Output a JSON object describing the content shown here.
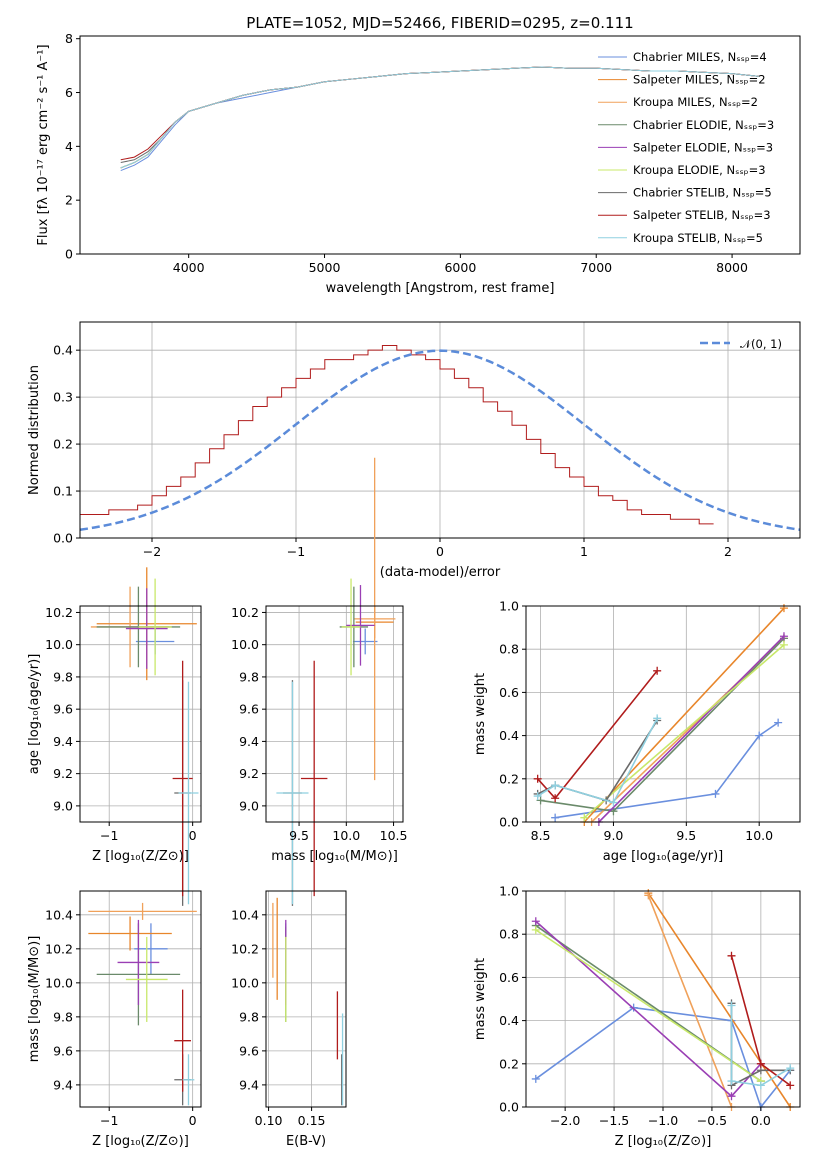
{
  "title": "PLATE=1052, MJD=52466, FIBERID=0295, z=0.111",
  "series_colors": [
    "#6a8fde",
    "#e8862b",
    "#f0a15a",
    "#6a8a6a",
    "#9a3fb4",
    "#c8e86a",
    "#6a6a6a",
    "#b01c1c",
    "#8fd0e0"
  ],
  "chart_data": [
    {
      "type": "line",
      "xlabel": "wavelength [Angstrom, rest frame]",
      "ylabel": "Flux [fλ 10⁻¹⁷ erg cm⁻² s⁻¹ A⁻¹]",
      "xlim": [
        3200,
        8500
      ],
      "ylim": [
        0,
        8.1
      ],
      "xticks": [
        "4000",
        "5000",
        "6000",
        "7000",
        "8000"
      ],
      "yticks": [
        "0",
        "2",
        "4",
        "6",
        "8"
      ],
      "grid": false,
      "legend_position": "right",
      "x": [
        3500,
        3600,
        3700,
        3800,
        3900,
        4000,
        4200,
        4400,
        4600,
        4800,
        5000,
        5200,
        5400,
        5600,
        5800,
        6000,
        6200,
        6400,
        6600,
        6800,
        7000,
        7200,
        7400,
        7600,
        7800,
        8000,
        8200
      ],
      "series": [
        {
          "name": "Chabrier MILES, N_SSP=4",
          "values": [
            3.1,
            3.3,
            3.6,
            4.2,
            4.8,
            5.3,
            5.6,
            5.8,
            6.0,
            6.2,
            6.4,
            6.5,
            6.6,
            6.7,
            6.75,
            6.8,
            6.85,
            6.9,
            6.95,
            6.9,
            6.9,
            6.85,
            6.8,
            6.8,
            6.75,
            6.7,
            6.6
          ]
        },
        {
          "name": "Salpeter MILES, N_SSP=2",
          "values": [
            3.2,
            3.4,
            3.7,
            4.3,
            4.9,
            5.3,
            5.6,
            5.9,
            6.1,
            6.2,
            6.4,
            6.5,
            6.6,
            6.7,
            6.75,
            6.8,
            6.85,
            6.9,
            6.95,
            6.9,
            6.9,
            6.85,
            6.8,
            6.8,
            6.75,
            6.7,
            6.6
          ]
        },
        {
          "name": "Kroupa MILES, N_SSP=2",
          "values": [
            3.2,
            3.4,
            3.7,
            4.3,
            4.9,
            5.3,
            5.6,
            5.9,
            6.1,
            6.2,
            6.4,
            6.5,
            6.6,
            6.7,
            6.75,
            6.8,
            6.85,
            6.9,
            6.95,
            6.9,
            6.9,
            6.85,
            6.8,
            6.8,
            6.75,
            6.7,
            6.6
          ]
        },
        {
          "name": "Chabrier ELODIE, N_SSP=3",
          "values": [
            3.2,
            3.4,
            3.7,
            4.3,
            4.9,
            5.3,
            5.6,
            5.9,
            6.1,
            6.2,
            6.4,
            6.5,
            6.6,
            6.7,
            6.75,
            6.8,
            6.85,
            6.9,
            6.95,
            6.9,
            6.9,
            6.85,
            6.8,
            6.8,
            6.75,
            6.7,
            6.6
          ]
        },
        {
          "name": "Salpeter ELODIE, N_SSP=3",
          "values": [
            3.2,
            3.4,
            3.7,
            4.3,
            4.9,
            5.3,
            5.6,
            5.9,
            6.1,
            6.2,
            6.4,
            6.5,
            6.6,
            6.7,
            6.75,
            6.8,
            6.85,
            6.9,
            6.95,
            6.9,
            6.9,
            6.85,
            6.8,
            6.8,
            6.75,
            6.7,
            6.6
          ]
        },
        {
          "name": "Kroupa ELODIE, N_SSP=3",
          "values": [
            3.2,
            3.4,
            3.7,
            4.3,
            4.9,
            5.3,
            5.6,
            5.9,
            6.1,
            6.2,
            6.4,
            6.5,
            6.6,
            6.7,
            6.75,
            6.8,
            6.85,
            6.9,
            6.95,
            6.9,
            6.9,
            6.85,
            6.8,
            6.8,
            6.75,
            6.7,
            6.6
          ]
        },
        {
          "name": "Chabrier STELIB, N_SSP=5",
          "values": [
            3.4,
            3.5,
            3.8,
            4.3,
            4.9,
            5.3,
            5.6,
            5.9,
            6.1,
            6.2,
            6.4,
            6.5,
            6.6,
            6.7,
            6.75,
            6.8,
            6.85,
            6.9,
            6.95,
            6.9,
            6.9,
            6.85,
            6.8,
            6.8,
            6.75,
            6.7,
            6.6
          ]
        },
        {
          "name": "Salpeter STELIB, N_SSP=3",
          "values": [
            3.5,
            3.6,
            3.9,
            4.4,
            4.9,
            5.3,
            5.6,
            5.9,
            6.1,
            6.2,
            6.4,
            6.5,
            6.6,
            6.7,
            6.75,
            6.8,
            6.85,
            6.9,
            6.95,
            6.9,
            6.9,
            6.85,
            6.8,
            6.8,
            6.75,
            6.7,
            6.6
          ]
        },
        {
          "name": "Kroupa STELIB, N_SSP=5",
          "values": [
            3.2,
            3.4,
            3.7,
            4.3,
            4.9,
            5.3,
            5.6,
            5.9,
            6.1,
            6.2,
            6.4,
            6.5,
            6.6,
            6.7,
            6.75,
            6.8,
            6.85,
            6.9,
            6.95,
            6.9,
            6.9,
            6.85,
            6.8,
            6.8,
            6.75,
            6.7,
            6.6
          ]
        }
      ]
    },
    {
      "type": "bar",
      "xlabel": "(data-model)/error",
      "ylabel": "Normed distribution",
      "xlim": [
        -2.5,
        2.5
      ],
      "ylim": [
        0,
        0.46
      ],
      "xticks": [
        "−2",
        "−1",
        "0",
        "1",
        "2"
      ],
      "yticks": [
        "0.0",
        "0.1",
        "0.2",
        "0.3",
        "0.4"
      ],
      "grid": true,
      "legend_position": "top-right",
      "reference_curve": "𝒩(0, 1)",
      "bin_width": 0.1,
      "values": [
        0.05,
        0.05,
        0.06,
        0.06,
        0.07,
        0.09,
        0.11,
        0.13,
        0.16,
        0.19,
        0.22,
        0.25,
        0.28,
        0.3,
        0.32,
        0.34,
        0.36,
        0.38,
        0.38,
        0.39,
        0.4,
        0.41,
        0.4,
        0.39,
        0.38,
        0.36,
        0.34,
        0.32,
        0.29,
        0.27,
        0.24,
        0.21,
        0.18,
        0.15,
        0.13,
        0.11,
        0.09,
        0.08,
        0.06,
        0.05,
        0.05,
        0.04,
        0.04,
        0.03
      ]
    },
    {
      "type": "scatter",
      "xlabel": "Z [log₁₀(Z/Z⊙)]",
      "ylabel": "age  [log₁₀(age/yr)]",
      "xlim": [
        -1.35,
        0.1
      ],
      "ylim": [
        8.9,
        10.24
      ],
      "xticks": [
        "−1",
        "0"
      ],
      "yticks": [
        "9.0",
        "9.2",
        "9.4",
        "9.6",
        "9.8",
        "10.0",
        "10.2"
      ],
      "grid": true,
      "points": [
        {
          "x": -0.45,
          "y": 10.02,
          "ex": 0.23,
          "ey": 0.08
        },
        {
          "x": -0.55,
          "y": 10.13,
          "ex": 0.6,
          "ey": 0.35
        },
        {
          "x": -0.75,
          "y": 10.11,
          "ex": 0.47,
          "ey": 0.25
        },
        {
          "x": -0.65,
          "y": 10.11,
          "ex": 0.5,
          "ey": 0.25
        },
        {
          "x": -0.55,
          "y": 10.1,
          "ex": 0.25,
          "ey": 0.25
        },
        {
          "x": -0.45,
          "y": 10.11,
          "ex": 0.2,
          "ey": 0.3
        },
        {
          "x": -0.12,
          "y": 9.08,
          "ex": 0.1,
          "ey": 0.7
        },
        {
          "x": -0.12,
          "y": 9.17,
          "ex": 0.12,
          "ey": 0.73
        },
        {
          "x": -0.05,
          "y": 9.08,
          "ex": 0.12,
          "ey": 0.69
        }
      ]
    },
    {
      "type": "scatter",
      "xlabel": "mass [log₁₀(M/M⊙)]",
      "ylabel": "",
      "xlim": [
        9.15,
        10.6
      ],
      "ylim": [
        8.9,
        10.24
      ],
      "xticks": [
        "9.5",
        "10.0",
        "10.5"
      ],
      "yticks": [
        "9.0",
        "9.2",
        "9.4",
        "9.6",
        "9.8",
        "10.0",
        "10.2"
      ],
      "grid": true,
      "points": [
        {
          "x": 10.2,
          "y": 10.02,
          "ex": 0.13,
          "ey": 0.08
        },
        {
          "x": 10.3,
          "y": 10.14,
          "ex": 0.2,
          "ey": 0.1
        },
        {
          "x": 10.3,
          "y": 10.16,
          "ex": 0.22,
          "ey": 1.0
        },
        {
          "x": 10.08,
          "y": 10.11,
          "ex": 0.15,
          "ey": 0.25
        },
        {
          "x": 10.15,
          "y": 10.12,
          "ex": 0.15,
          "ey": 0.25
        },
        {
          "x": 10.05,
          "y": 10.11,
          "ex": 0.1,
          "ey": 0.3
        },
        {
          "x": 9.43,
          "y": 9.08,
          "ex": 0.1,
          "ey": 0.7
        },
        {
          "x": 9.66,
          "y": 9.17,
          "ex": 0.14,
          "ey": 0.73
        },
        {
          "x": 9.43,
          "y": 9.08,
          "ex": 0.17,
          "ey": 0.69
        }
      ]
    },
    {
      "type": "line",
      "xlabel": "age  [log₁₀(age/yr)]",
      "ylabel": "mass weight",
      "xlim": [
        8.4,
        10.28
      ],
      "ylim": [
        0,
        1.0
      ],
      "xticks": [
        "8.5",
        "9.0",
        "9.5",
        "10.0"
      ],
      "yticks": [
        "0.0",
        "0.2",
        "0.4",
        "0.6",
        "0.8",
        "1.0"
      ],
      "grid": true,
      "series": [
        {
          "x": [
            8.6,
            9.7,
            10.0,
            10.13
          ],
          "values": [
            0.02,
            0.13,
            0.4,
            0.46
          ]
        },
        {
          "x": [
            8.8,
            10.17
          ],
          "values": [
            0.0,
            0.99
          ]
        },
        {
          "x": [
            8.85,
            10.17
          ],
          "values": [
            0.0,
            0.85
          ]
        },
        {
          "x": [
            8.5,
            9.0,
            10.17
          ],
          "values": [
            0.1,
            0.05,
            0.85
          ]
        },
        {
          "x": [
            8.9,
            10.17
          ],
          "values": [
            0.0,
            0.86
          ]
        },
        {
          "x": [
            8.8,
            10.17
          ],
          "values": [
            0.02,
            0.82
          ]
        },
        {
          "x": [
            8.48,
            8.6,
            8.95,
            9.3
          ],
          "values": [
            0.13,
            0.17,
            0.1,
            0.47
          ]
        },
        {
          "x": [
            8.48,
            8.6,
            9.3
          ],
          "values": [
            0.2,
            0.11,
            0.7
          ]
        },
        {
          "x": [
            8.48,
            8.6,
            9.0,
            9.3
          ],
          "values": [
            0.12,
            0.17,
            0.09,
            0.48
          ]
        }
      ]
    },
    {
      "type": "scatter",
      "xlabel": "Z [log₁₀(Z/Z⊙)]",
      "ylabel": "mass [log₁₀(M/M⊙)]",
      "xlim": [
        -1.35,
        0.1
      ],
      "ylim": [
        9.27,
        10.54
      ],
      "xticks": [
        "−1",
        "0"
      ],
      "yticks": [
        "9.4",
        "9.6",
        "9.8",
        "10.0",
        "10.2",
        "10.4"
      ],
      "grid": true,
      "points": [
        {
          "x": -0.5,
          "y": 10.2,
          "ex": 0.2,
          "ey": 0.15
        },
        {
          "x": -0.75,
          "y": 10.29,
          "ex": 0.5,
          "ey": 0.1
        },
        {
          "x": -0.6,
          "y": 10.42,
          "ex": 0.65,
          "ey": 0.05
        },
        {
          "x": -0.65,
          "y": 10.05,
          "ex": 0.5,
          "ey": 0.3
        },
        {
          "x": -0.65,
          "y": 10.12,
          "ex": 0.25,
          "ey": 0.25
        },
        {
          "x": -0.55,
          "y": 10.02,
          "ex": 0.25,
          "ey": 0.25
        },
        {
          "x": -0.12,
          "y": 9.43,
          "ex": 0.1,
          "ey": 0.15
        },
        {
          "x": -0.12,
          "y": 9.66,
          "ex": 0.1,
          "ey": 0.3
        },
        {
          "x": -0.05,
          "y": 9.43,
          "ex": 0.07,
          "ey": 0.15
        }
      ]
    },
    {
      "type": "scatter",
      "xlabel": "E(B-V)",
      "ylabel": "",
      "xlim": [
        0.097,
        0.19
      ],
      "ylim": [
        9.27,
        10.54
      ],
      "xticks": [
        "0.10",
        "0.15"
      ],
      "yticks": [
        "9.4",
        "9.6",
        "9.8",
        "10.0",
        "10.2",
        "10.4"
      ],
      "grid": true,
      "points": [
        {
          "x": 0.12,
          "y": 10.2,
          "ex": 0.0,
          "ey": 0.15
        },
        {
          "x": 0.11,
          "y": 10.2,
          "ex": 0.0,
          "ey": 0.3
        },
        {
          "x": 0.105,
          "y": 10.25,
          "ex": 0.0,
          "ey": 0.22
        },
        {
          "x": 0.12,
          "y": 10.05,
          "ex": 0.0,
          "ey": 0.28
        },
        {
          "x": 0.12,
          "y": 10.12,
          "ex": 0.0,
          "ey": 0.25
        },
        {
          "x": 0.12,
          "y": 10.02,
          "ex": 0.0,
          "ey": 0.25
        },
        {
          "x": 0.185,
          "y": 9.43,
          "ex": 0.0,
          "ey": 0.15
        },
        {
          "x": 0.18,
          "y": 9.75,
          "ex": 0.0,
          "ey": 0.2
        },
        {
          "x": 0.186,
          "y": 9.55,
          "ex": 0.0,
          "ey": 0.27
        }
      ]
    },
    {
      "type": "line",
      "xlabel": "Z [log₁₀(Z/Z⊙)]",
      "ylabel": "mass weight",
      "xlim": [
        -2.4,
        0.4
      ],
      "ylim": [
        0,
        1.0
      ],
      "xticks": [
        "−2.0",
        "−1.5",
        "−1.0",
        "−0.5",
        "0.0"
      ],
      "yticks": [
        "0.0",
        "0.2",
        "0.4",
        "0.6",
        "0.8",
        "1.0"
      ],
      "grid": true,
      "series": [
        {
          "x": [
            -2.3,
            -1.3,
            -0.3,
            0.0,
            0.3
          ],
          "values": [
            0.13,
            0.46,
            0.4,
            0.0,
            0.17
          ]
        },
        {
          "x": [
            -1.15,
            0.3
          ],
          "values": [
            0.99,
            0.0
          ]
        },
        {
          "x": [
            -1.15,
            -0.3
          ],
          "values": [
            0.98,
            0.0
          ]
        },
        {
          "x": [
            -2.3,
            0.0
          ],
          "values": [
            0.84,
            0.12
          ]
        },
        {
          "x": [
            -2.3,
            -0.3,
            0.0
          ],
          "values": [
            0.86,
            0.05,
            0.2
          ]
        },
        {
          "x": [
            -2.3,
            0.0
          ],
          "values": [
            0.82,
            0.12
          ]
        },
        {
          "x": [
            -0.3,
            -0.3,
            0.0,
            0.3
          ],
          "values": [
            0.48,
            0.1,
            0.17,
            0.17
          ]
        },
        {
          "x": [
            -0.3,
            0.0,
            0.3
          ],
          "values": [
            0.7,
            0.2,
            0.1
          ]
        },
        {
          "x": [
            -0.3,
            -0.3,
            0.0,
            0.3
          ],
          "values": [
            0.47,
            0.12,
            0.1,
            0.18
          ]
        }
      ]
    }
  ]
}
